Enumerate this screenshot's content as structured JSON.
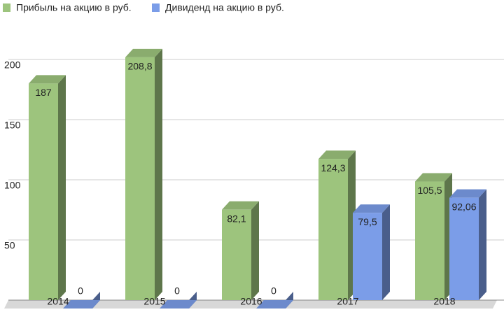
{
  "chart_data": {
    "type": "bar3d",
    "categories": [
      "2014",
      "2015",
      "2016",
      "2017",
      "2018"
    ],
    "series": [
      {
        "name": "Прибыль на акцию в руб.",
        "color": "#9dc47d",
        "values": [
          187,
          208.8,
          82.1,
          124.3,
          105.5
        ],
        "value_labels": [
          "187",
          "208,8",
          "82,1",
          "124,3",
          "105,5"
        ]
      },
      {
        "name": "Дивиденд на акцию в руб.",
        "color": "#7b9de8",
        "values": [
          0,
          0,
          0,
          79.5,
          92.06
        ],
        "value_labels": [
          "0",
          "0",
          "0",
          "79,5",
          "92,06"
        ]
      }
    ],
    "ylim": [
      0,
      225
    ],
    "yticks": [
      50,
      100,
      150,
      200
    ],
    "grid": true,
    "legend": "top"
  }
}
